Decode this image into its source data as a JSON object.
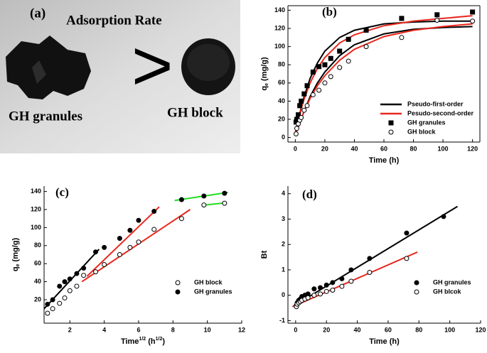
{
  "photo": {
    "label": "(a)",
    "title": "Adsorption Rate",
    "symbol": ">",
    "left_caption": "GH granules",
    "right_caption": "GH block"
  },
  "chart_data": [
    {
      "type": "scatter",
      "label": "(b)",
      "frame": true,
      "legend": "lower right",
      "x_label": [
        {
          "text": "Time (h)"
        }
      ],
      "y_label": [
        {
          "text": "q"
        },
        {
          "text": "e",
          "shift": "sub"
        },
        {
          "text": " (mg/g)"
        }
      ],
      "xlim": [
        -5,
        125
      ],
      "ylim": [
        -5,
        145
      ],
      "xticks": [
        0,
        20,
        40,
        60,
        80,
        100,
        120
      ],
      "yticks": [
        0,
        20,
        40,
        60,
        80,
        100,
        120,
        140
      ],
      "fits": [
        {
          "name": "Pseudo-first-order",
          "color": "#000000",
          "curves": [
            {
              "x": [
                0,
                5,
                10,
                15,
                20,
                30,
                40,
                60,
                80,
                100,
                120
              ],
              "values": [
                5,
                40,
                65,
                82,
                95,
                110,
                118,
                125,
                127,
                128,
                128
              ]
            },
            {
              "x": [
                0,
                5,
                10,
                15,
                20,
                30,
                40,
                60,
                80,
                100,
                120
              ],
              "values": [
                3,
                25,
                45,
                60,
                72,
                90,
                102,
                114,
                119,
                121,
                122
              ]
            }
          ]
        },
        {
          "name": "Pesudo-second-order",
          "color": "#e8281e",
          "curves": [
            {
              "x": [
                0,
                5,
                10,
                15,
                20,
                30,
                40,
                60,
                80,
                100,
                120
              ],
              "values": [
                5,
                38,
                60,
                76,
                88,
                104,
                113,
                123,
                128,
                131,
                134
              ]
            },
            {
              "x": [
                0,
                5,
                10,
                15,
                20,
                30,
                40,
                60,
                80,
                100,
                120
              ],
              "values": [
                3,
                25,
                43,
                57,
                68,
                85,
                97,
                111,
                118,
                122,
                125
              ]
            }
          ]
        }
      ],
      "series": [
        {
          "name": "GH granules",
          "color": "#000000",
          "marker": "square",
          "filled": true,
          "x": [
            0.5,
            1,
            2,
            3,
            4,
            6,
            8,
            12,
            16,
            20,
            24,
            30,
            36,
            48,
            72,
            96,
            120
          ],
          "values": [
            17,
            20,
            25,
            35,
            40,
            48,
            57,
            72,
            78,
            80,
            87,
            95,
            108,
            118,
            131,
            135,
            138
          ]
        },
        {
          "name": "GH block",
          "color": "#000000",
          "marker": "circle",
          "filled": false,
          "x": [
            0.5,
            1,
            2,
            3,
            4,
            6,
            8,
            12,
            16,
            20,
            24,
            30,
            36,
            48,
            72,
            96,
            120
          ],
          "values": [
            4,
            10,
            15,
            19,
            22,
            30,
            35,
            47,
            52,
            60,
            67,
            77,
            84,
            100,
            110,
            129,
            128
          ]
        }
      ]
    },
    {
      "type": "scatter",
      "label": "(c)",
      "frame": false,
      "legend": "lower right",
      "x_label": [
        {
          "text": "Time"
        },
        {
          "text": "1/2",
          "shift": "super"
        },
        {
          "text": " (h"
        },
        {
          "text": "1/2",
          "shift": "super"
        },
        {
          "text": ")"
        }
      ],
      "y_label": [
        {
          "text": "q"
        },
        {
          "text": "e",
          "shift": "sub"
        },
        {
          "text": " (mg/g)"
        }
      ],
      "xlim": [
        0.5,
        12
      ],
      "ylim": [
        -6,
        146
      ],
      "xticks": [
        2,
        4,
        6,
        8,
        10,
        12
      ],
      "yticks": [
        20,
        40,
        60,
        80,
        100,
        120,
        140
      ],
      "fits": [
        {
          "color": "#000000",
          "curves": [
            {
              "x": [
                0.5,
                3.7
              ],
              "values": [
                10,
                76
              ]
            }
          ]
        },
        {
          "color": "#e8281e",
          "curves": [
            {
              "x": [
                3,
                7.2
              ],
              "values": [
                46,
                123
              ]
            },
            {
              "x": [
                2.7,
                9
              ],
              "values": [
                40,
                120
              ]
            }
          ]
        },
        {
          "color": "#22dd22",
          "curves": [
            {
              "x": [
                8.1,
                11.2
              ],
              "values": [
                130,
                139
              ]
            },
            {
              "x": [
                9.8,
                11.1
              ],
              "values": [
                125,
                127.5
              ]
            }
          ]
        }
      ],
      "series": [
        {
          "name": "GH block",
          "color": "#000000",
          "marker": "circle",
          "filled": false,
          "x": [
            0.7,
            1,
            1.4,
            1.7,
            2,
            2.4,
            2.8,
            3.5,
            4,
            4.9,
            5.5,
            6,
            6.9,
            8.5,
            9.8,
            11
          ],
          "values": [
            5,
            10,
            16,
            22,
            30,
            35,
            47,
            51,
            59,
            70,
            78,
            84,
            98,
            110,
            125,
            127
          ]
        },
        {
          "name": "GH granules",
          "color": "#000000",
          "marker": "circle",
          "filled": true,
          "x": [
            0.7,
            1,
            1.4,
            1.7,
            2,
            2.4,
            2.8,
            3.5,
            4,
            4.9,
            5.5,
            6,
            6.9,
            8.5,
            9.8,
            11
          ],
          "values": [
            15,
            20,
            35,
            40,
            43,
            49,
            55,
            73,
            78,
            88,
            97,
            108,
            118,
            131,
            135,
            138
          ]
        }
      ]
    },
    {
      "type": "scatter",
      "label": "(d)",
      "frame": false,
      "legend": "lower right",
      "x_label": [
        {
          "text": "Time (h)"
        }
      ],
      "y_label": [
        {
          "text": "Bt"
        }
      ],
      "xlim": [
        -5,
        120
      ],
      "ylim": [
        -1.1,
        4.3
      ],
      "xticks": [
        0,
        20,
        40,
        60,
        80,
        100,
        120
      ],
      "yticks": [
        -1,
        0,
        1,
        2,
        3,
        4
      ],
      "fits": [
        {
          "color": "#000000",
          "curves": [
            {
              "x": [
                -2,
                105
              ],
              "values": [
                -0.45,
                3.5
              ]
            }
          ]
        },
        {
          "color": "#e8281e",
          "curves": [
            {
              "x": [
                -2,
                79
              ],
              "values": [
                -0.45,
                1.7
              ]
            }
          ]
        }
      ],
      "series": [
        {
          "name": "GH granules",
          "color": "#000000",
          "marker": "circle",
          "filled": true,
          "x": [
            0.5,
            1,
            2,
            3,
            4,
            6,
            8,
            12,
            16,
            20,
            24,
            30,
            36,
            48,
            72,
            96
          ],
          "values": [
            -0.4,
            -0.3,
            -0.2,
            -0.15,
            -0.05,
            0,
            0.05,
            0.25,
            0.3,
            0.4,
            0.5,
            0.65,
            1.0,
            1.45,
            2.45,
            3.1
          ]
        },
        {
          "name": "GH blcok",
          "color": "#000000",
          "marker": "circle",
          "filled": false,
          "x": [
            0.5,
            1,
            2,
            3,
            4,
            6,
            8,
            12,
            16,
            20,
            24,
            30,
            36,
            48,
            72
          ],
          "values": [
            -0.45,
            -0.35,
            -0.3,
            -0.25,
            -0.2,
            -0.15,
            -0.1,
            0,
            0.05,
            0.15,
            0.2,
            0.35,
            0.55,
            0.9,
            1.45
          ]
        }
      ]
    }
  ]
}
